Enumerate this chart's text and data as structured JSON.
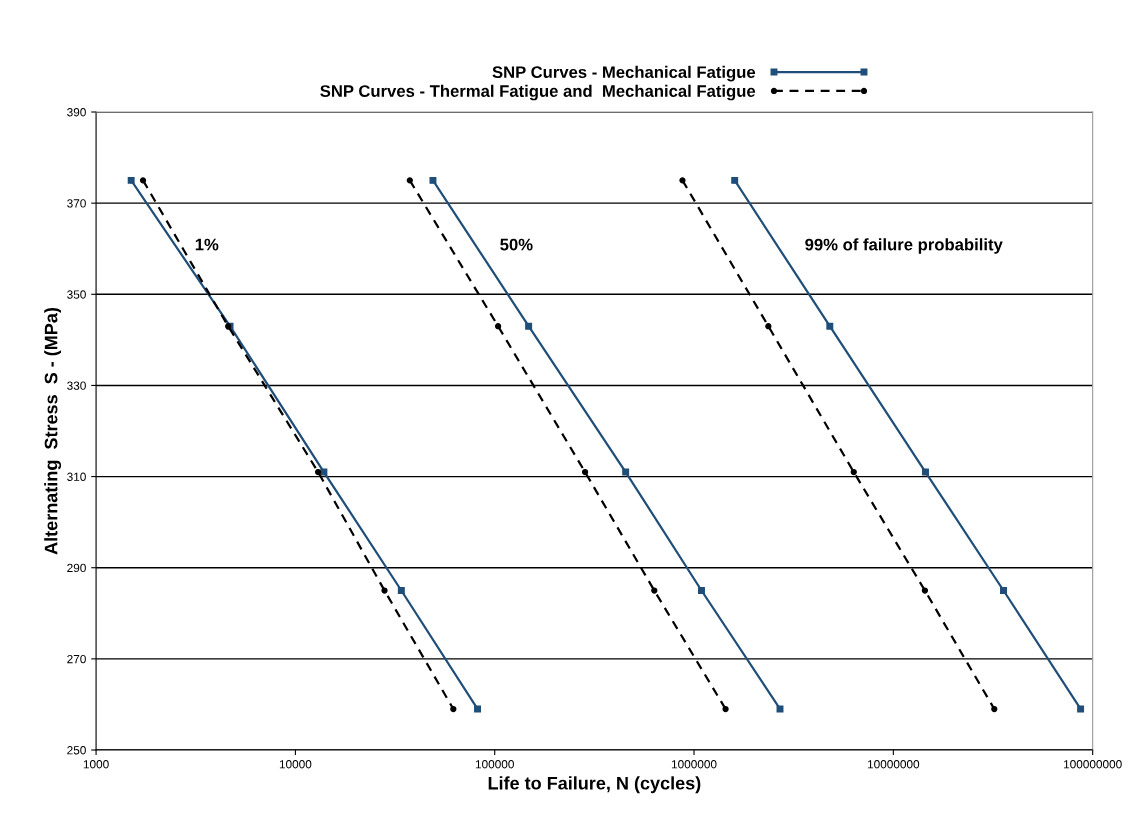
{
  "chart_data": {
    "type": "line",
    "xlabel": "Life to Failure, N (cycles)",
    "ylabel": "Alternating  Stress  S - (MPa)",
    "log": "x",
    "xlim": [
      1000,
      100000000
    ],
    "xticks": [
      1000,
      10000,
      100000,
      1000000,
      10000000,
      100000000
    ],
    "ylim": [
      250,
      390
    ],
    "yticks": [
      250,
      270,
      290,
      310,
      330,
      350,
      370,
      390
    ],
    "grid": "y",
    "legend": "top",
    "series": [
      {
        "name": "SNP Curves - Mechanical Fatigue",
        "color": "#1f4e79",
        "line_style": "solid",
        "marker": "square",
        "x": [
          1500,
          4700,
          13900,
          34000,
          82000
        ],
        "values": [
          375,
          343,
          311,
          285,
          259
        ]
      },
      {
        "name": "SNP Curves - Thermal Fatigue and  Mechanical Fatigue",
        "color": "#000000",
        "line_style": "dashed",
        "marker": "circle",
        "x": [
          1720,
          4600,
          13000,
          28000,
          62000
        ],
        "values": [
          375,
          343,
          311,
          285,
          259
        ]
      },
      {
        "color": "#1f4e79",
        "line_style": "solid",
        "marker": "square",
        "x": [
          49000,
          148000,
          454000,
          1090000,
          2700000
        ],
        "values": [
          375,
          343,
          311,
          285,
          259
        ]
      },
      {
        "color": "#000000",
        "line_style": "dashed",
        "marker": "circle",
        "x": [
          37500,
          104000,
          284000,
          632000,
          1440000
        ],
        "values": [
          375,
          343,
          311,
          285,
          259
        ]
      },
      {
        "color": "#1f4e79",
        "line_style": "solid",
        "marker": "square",
        "x": [
          1600000,
          4800000,
          14500000,
          35700000,
          87000000
        ],
        "values": [
          375,
          343,
          311,
          285,
          259
        ]
      },
      {
        "color": "#000000",
        "line_style": "dashed",
        "marker": "circle",
        "x": [
          875000,
          2360000,
          6330000,
          14400000,
          32100000
        ],
        "values": [
          375,
          343,
          311,
          285,
          259
        ]
      }
    ],
    "annotations": [
      "1%",
      "50%",
      "99% of failure probability"
    ]
  }
}
